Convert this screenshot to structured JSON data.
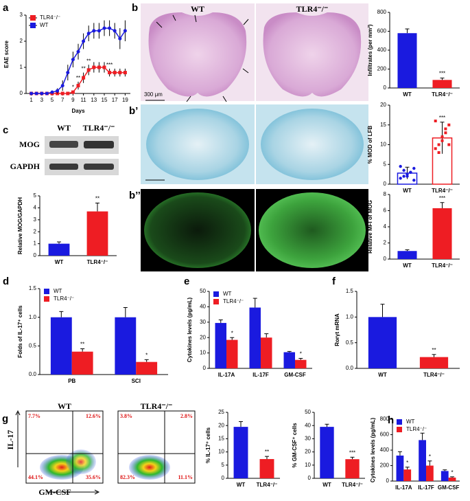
{
  "chart_data": [
    {
      "type": "line",
      "panel": "a",
      "ylabel": "EAE score",
      "xlabel": "Days",
      "x": [
        1,
        2,
        3,
        4,
        5,
        6,
        7,
        8,
        9,
        10,
        11,
        12,
        13,
        14,
        15,
        16,
        17,
        18,
        19
      ],
      "xlim": [
        0,
        20
      ],
      "xticks": [
        1,
        3,
        5,
        7,
        9,
        11,
        13,
        15,
        17,
        19
      ],
      "ylim": [
        0,
        3
      ],
      "yticks": [
        0,
        1,
        2,
        3
      ],
      "legend": "top-left",
      "series": [
        {
          "name": "TLR4⁻/⁻",
          "color": "#ee1d23",
          "marker": "square",
          "values": [
            0,
            0,
            0,
            0,
            0,
            0,
            0,
            0,
            0.05,
            0.3,
            0.6,
            0.9,
            1.0,
            1.0,
            1.0,
            0.8,
            0.8,
            0.8,
            0.8
          ],
          "errors": [
            0,
            0,
            0,
            0,
            0,
            0,
            0,
            0,
            0.05,
            0.15,
            0.2,
            0.2,
            0.2,
            0.2,
            0.2,
            0.15,
            0.15,
            0.15,
            0.15
          ],
          "significance": [
            null,
            null,
            null,
            null,
            null,
            null,
            null,
            null,
            "*",
            "**",
            "**",
            "**",
            null,
            null,
            null,
            "***",
            null,
            null,
            null
          ]
        },
        {
          "name": "WT",
          "color": "#1a1adf",
          "marker": "circle",
          "values": [
            0,
            0,
            0,
            0,
            0.05,
            0.1,
            0.3,
            0.8,
            1.3,
            1.6,
            2.0,
            2.3,
            2.4,
            2.4,
            2.5,
            2.5,
            2.4,
            2.1,
            2.4
          ],
          "errors": [
            0,
            0,
            0,
            0,
            0.05,
            0.1,
            0.2,
            0.3,
            0.3,
            0.3,
            0.3,
            0.3,
            0.3,
            0.3,
            0.3,
            0.3,
            0.3,
            0.4,
            0.4
          ]
        }
      ]
    },
    {
      "type": "bar",
      "ylabel": "Infiltrates (per mm²)",
      "categories": [
        "WT",
        "TLR4⁻/⁻"
      ],
      "values": [
        580,
        85
      ],
      "errors": [
        45,
        20
      ],
      "colors": [
        "#1a1adf",
        "#ee1d23"
      ],
      "significance": [
        null,
        "***"
      ],
      "ylim": [
        0,
        800
      ],
      "yticks": [
        0,
        200,
        400,
        600,
        800
      ]
    },
    {
      "type": "bar",
      "ylabel": "% MOD of LFB",
      "categories": [
        "WT",
        "TLR4⁻/⁻"
      ],
      "bar_style": "outline",
      "values": [
        2.8,
        11.7
      ],
      "errors": [
        1.5,
        4
      ],
      "colors": [
        "#1a1adf",
        "#ee1d23"
      ],
      "significance": [
        null,
        "***"
      ],
      "points": [
        [
          1.5,
          2.0,
          2.5,
          3.0,
          1.0,
          4.5,
          3.5,
          2.0,
          3.0,
          4.0
        ],
        [
          9,
          10,
          12,
          14,
          15,
          16,
          8,
          11,
          13,
          10
        ]
      ],
      "ylim": [
        0,
        20
      ],
      "yticks": [
        0,
        5,
        10,
        15,
        20
      ]
    },
    {
      "type": "bar",
      "ylabel": "Relative MFI of MOG",
      "categories": [
        "WT",
        "TLR4⁻/⁻"
      ],
      "values": [
        1.0,
        6.3
      ],
      "errors": [
        0.15,
        0.7
      ],
      "colors": [
        "#1a1adf",
        "#ee1d23"
      ],
      "significance": [
        null,
        "***"
      ],
      "ylim": [
        0,
        8
      ],
      "yticks": [
        0,
        2,
        4,
        6,
        8
      ]
    },
    {
      "type": "bar",
      "panel": "c",
      "ylabel": "Relative MOG/GAPDH",
      "categories": [
        "WT",
        "TLR4⁻/⁻"
      ],
      "values": [
        1.0,
        3.7
      ],
      "errors": [
        0.15,
        0.7
      ],
      "colors": [
        "#1a1adf",
        "#ee1d23"
      ],
      "significance": [
        null,
        "**"
      ],
      "ylim": [
        0,
        5
      ],
      "yticks": [
        0,
        1,
        2,
        3,
        4,
        5
      ]
    },
    {
      "type": "bar",
      "panel": "d",
      "ylabel": "Folds of IL-17⁺ cells",
      "categories": [
        "PB",
        "SCI"
      ],
      "legend": "top-left",
      "series": [
        {
          "name": "WT",
          "color": "#1a1adf",
          "values": [
            1.0,
            1.0
          ],
          "errors": [
            0.1,
            0.17
          ]
        },
        {
          "name": "TLR4⁻/⁻",
          "color": "#ee1d23",
          "values": [
            0.4,
            0.22
          ],
          "errors": [
            0.05,
            0.04
          ],
          "significance": [
            "**",
            "*"
          ]
        }
      ],
      "ylim": [
        0,
        1.5
      ],
      "yticks": [
        {
          "value": 0,
          "label": "0.0"
        },
        {
          "value": 0.5,
          "label": "0.5"
        },
        {
          "value": 1,
          "label": "1.0"
        },
        {
          "value": 1.5,
          "label": "1.5"
        }
      ]
    },
    {
      "type": "bar",
      "panel": "e",
      "ylabel": "Cytokines levels (pg/mL)",
      "categories": [
        "IL-17A",
        "IL-17F",
        "GM-CSF"
      ],
      "legend": "top-left",
      "series": [
        {
          "name": "WT",
          "color": "#1a1adf",
          "values": [
            29.5,
            39.5,
            10.5
          ],
          "errors": [
            2,
            6,
            0.5
          ]
        },
        {
          "name": "TLR4⁻/⁻",
          "color": "#ee1d23",
          "values": [
            18.5,
            20,
            5.5
          ],
          "errors": [
            1.5,
            2.5,
            1
          ],
          "significance": [
            "*",
            null,
            "*"
          ]
        }
      ],
      "ylim": [
        0,
        50
      ],
      "yticks": [
        0,
        10,
        20,
        30,
        40,
        50
      ]
    },
    {
      "type": "bar",
      "panel": "f",
      "ylabel": "Rorγt mRNA",
      "categories": [
        "WT",
        "TLR4⁻/⁻"
      ],
      "values": [
        1.0,
        0.22
      ],
      "errors": [
        0.25,
        0.05
      ],
      "colors": [
        "#1a1adf",
        "#ee1d23"
      ],
      "significance": [
        null,
        "**"
      ],
      "ylim": [
        0,
        1.5
      ],
      "yticks": [
        {
          "value": 0,
          "label": "0.0"
        },
        {
          "value": 0.5,
          "label": "0.5"
        },
        {
          "value": 1,
          "label": "1.0"
        },
        {
          "value": 1.5,
          "label": "1.5"
        }
      ]
    },
    {
      "type": "bar",
      "ylabel": "% IL-17⁺ cells",
      "categories": [
        "WT",
        "TLR4⁻/⁻"
      ],
      "values": [
        19.5,
        7.3
      ],
      "errors": [
        2,
        1
      ],
      "colors": [
        "#1a1adf",
        "#ee1d23"
      ],
      "significance": [
        null,
        "**"
      ],
      "ylim": [
        0,
        25
      ],
      "yticks": [
        0,
        5,
        10,
        15,
        20,
        25
      ]
    },
    {
      "type": "bar",
      "ylabel": "% GM-CSF⁺ cells",
      "categories": [
        "WT",
        "TLR4⁻/⁻"
      ],
      "values": [
        39,
        14.5
      ],
      "errors": [
        2,
        1.5
      ],
      "colors": [
        "#1a1adf",
        "#ee1d23"
      ],
      "significance": [
        null,
        "***"
      ],
      "ylim": [
        0,
        50
      ],
      "yticks": [
        0,
        10,
        20,
        30,
        40,
        50
      ]
    },
    {
      "type": "bar",
      "panel": "h",
      "ylabel": "Cytokines levels (pg/mL)",
      "categories": [
        "IL-17A",
        "IL-17F",
        "GM-CSF"
      ],
      "legend": "top-left",
      "series": [
        {
          "name": "WT",
          "color": "#1a1adf",
          "values": [
            330,
            530,
            130
          ],
          "errors": [
            50,
            90,
            15
          ]
        },
        {
          "name": "TLR4⁻/⁻",
          "color": "#ee1d23",
          "values": [
            150,
            200,
            45
          ],
          "errors": [
            30,
            60,
            10
          ],
          "significance": [
            "*",
            "*",
            "*"
          ]
        }
      ],
      "ylim": [
        0,
        800
      ],
      "yticks": [
        0,
        200,
        400,
        600,
        800
      ]
    }
  ],
  "panels": {
    "b": {
      "labels": [
        "b",
        "b’",
        "b’’"
      ],
      "columns": [
        "WT",
        "TLR4⁻/⁻"
      ],
      "scale_bar": "300 μm"
    },
    "c": {
      "columns": [
        "WT",
        "TLR4⁻/⁻"
      ],
      "rows": [
        "MOG",
        "GAPDH"
      ]
    },
    "g": {
      "label": "g",
      "ylabel": "IL-17",
      "xlabel": "GM-CSF",
      "plots": [
        {
          "title": "WT",
          "quadrants": [
            "7.7%",
            "12.6%",
            "44.1%",
            "35.6%"
          ]
        },
        {
          "title": "TLR4⁻/⁻",
          "quadrants": [
            "3.8%",
            "2.8%",
            "82.3%",
            "11.1%"
          ]
        }
      ]
    }
  }
}
